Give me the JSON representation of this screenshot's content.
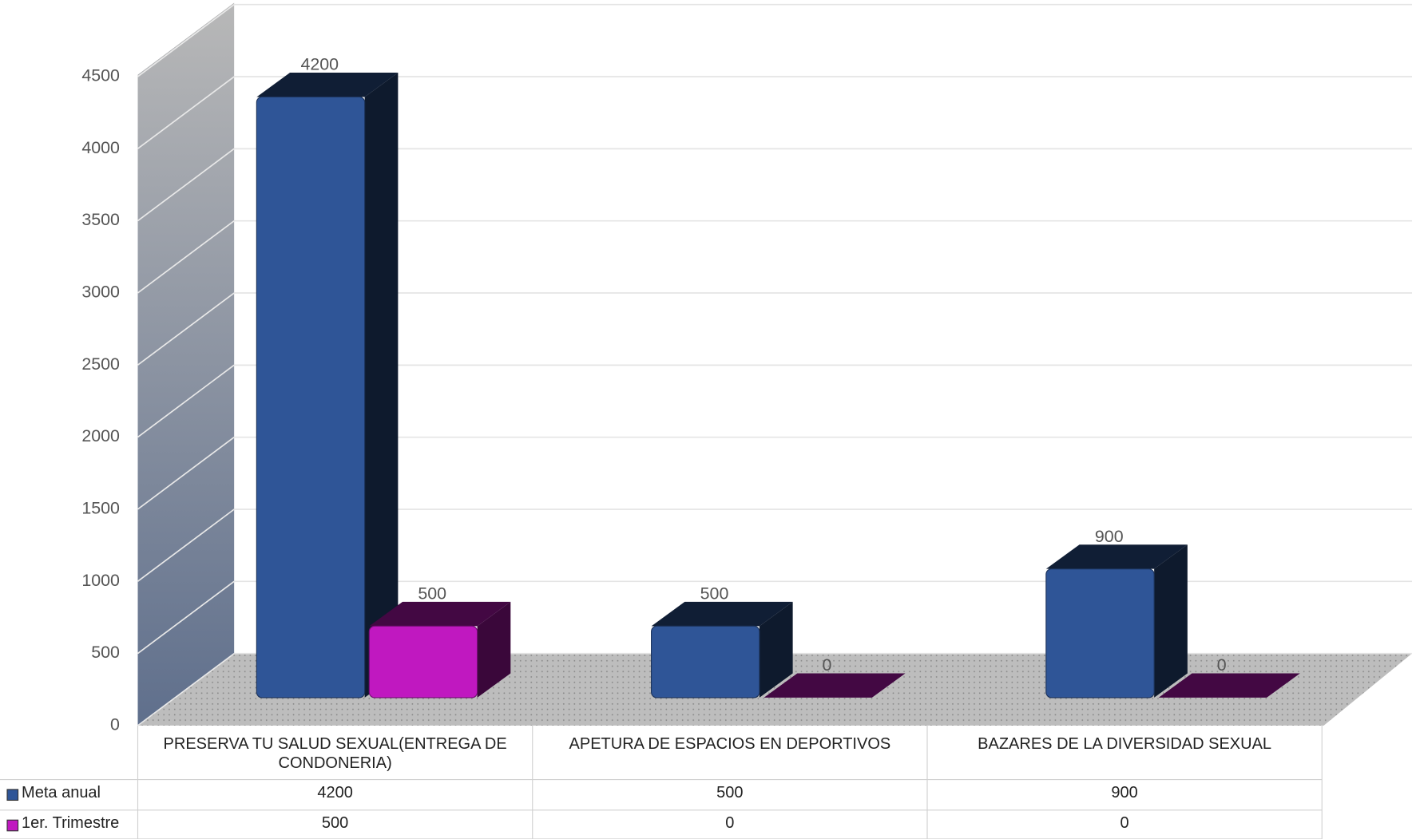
{
  "chart_data": {
    "type": "bar3d",
    "categories": [
      "PRESERVA TU SALUD SEXUAL(ENTREGA DE CONDONERIA)",
      "APETURA DE ESPACIOS EN DEPORTIVOS",
      "BAZARES DE LA DIVERSIDAD SEXUAL"
    ],
    "series": [
      {
        "name": "Meta anual",
        "color": "#2f5597",
        "values": [
          4200,
          500,
          900
        ]
      },
      {
        "name": "1er. Trimestre",
        "color": "#c018c0",
        "values": [
          500,
          0,
          0
        ]
      }
    ],
    "ylim": [
      0,
      4500
    ],
    "yticks": [
      0,
      500,
      1000,
      1500,
      2000,
      2500,
      3000,
      3500,
      4000,
      4500
    ],
    "grid": true,
    "legend": "table"
  }
}
